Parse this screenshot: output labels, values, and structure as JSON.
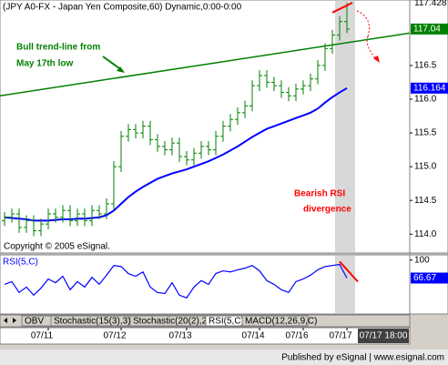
{
  "chart_data": {
    "type": "ohlc",
    "title": "(JPY A0-FX - Japan Yen Composite,60) Dynamic,0:00-0:00",
    "copyright": "Copyright © 2005 eSignal.",
    "categories": [
      null,
      null,
      null,
      null,
      null,
      null,
      "07/11",
      null,
      null,
      null,
      null,
      null,
      null,
      null,
      null,
      null,
      "07/12",
      null,
      null,
      null,
      null,
      null,
      null,
      null,
      null,
      "07/13",
      null,
      null,
      null,
      null,
      null,
      null,
      null,
      null,
      null,
      "07/14",
      null,
      null,
      null,
      null,
      null,
      "07/16",
      null,
      null,
      null,
      null,
      null,
      "07/17"
    ],
    "open": [
      114.2,
      114.25,
      114.3,
      114.1,
      114.2,
      114.05,
      114.15,
      114.3,
      114.25,
      114.35,
      114.2,
      114.3,
      114.2,
      114.35,
      114.3,
      114.45,
      115.0,
      115.45,
      115.55,
      115.5,
      115.6,
      115.4,
      115.3,
      115.25,
      115.35,
      115.15,
      115.1,
      115.2,
      115.3,
      115.25,
      115.45,
      115.6,
      115.7,
      115.8,
      115.9,
      116.2,
      116.35,
      116.25,
      116.2,
      116.1,
      116.05,
      116.15,
      116.2,
      116.3,
      116.5,
      116.75,
      116.95,
      117.15
    ],
    "high": [
      114.33,
      114.38,
      114.38,
      114.28,
      114.28,
      114.23,
      114.38,
      114.38,
      114.43,
      114.43,
      114.38,
      114.38,
      114.43,
      114.43,
      114.53,
      115.08,
      115.53,
      115.63,
      115.63,
      115.68,
      115.68,
      115.48,
      115.38,
      115.43,
      115.43,
      115.23,
      115.28,
      115.38,
      115.38,
      115.53,
      115.68,
      115.78,
      115.88,
      115.98,
      116.28,
      116.43,
      116.43,
      116.33,
      116.28,
      116.18,
      116.23,
      116.28,
      116.38,
      116.58,
      116.83,
      117.03,
      117.23,
      117.428
    ],
    "low": [
      114.12,
      114.17,
      114.02,
      114.02,
      113.97,
      113.97,
      114.07,
      114.17,
      114.17,
      114.12,
      114.12,
      114.12,
      114.12,
      114.22,
      114.22,
      114.37,
      114.92,
      115.37,
      115.42,
      115.42,
      115.32,
      115.22,
      115.17,
      115.17,
      115.07,
      115.02,
      115.02,
      115.12,
      115.17,
      115.17,
      115.37,
      115.52,
      115.62,
      115.72,
      115.82,
      116.12,
      116.17,
      116.12,
      116.02,
      115.97,
      115.97,
      116.07,
      116.12,
      116.22,
      116.42,
      116.67,
      116.87,
      116.98
    ],
    "close": [
      114.25,
      114.3,
      114.1,
      114.2,
      114.05,
      114.15,
      114.3,
      114.25,
      114.35,
      114.2,
      114.3,
      114.2,
      114.35,
      114.3,
      114.45,
      115.0,
      115.45,
      115.55,
      115.5,
      115.6,
      115.4,
      115.3,
      115.25,
      115.35,
      115.15,
      115.1,
      115.2,
      115.3,
      115.25,
      115.45,
      115.6,
      115.7,
      115.8,
      115.9,
      116.2,
      116.35,
      116.25,
      116.2,
      116.1,
      116.05,
      116.15,
      116.2,
      116.3,
      116.5,
      116.75,
      116.95,
      117.15,
      117.04
    ],
    "bar_color": "#008000",
    "ma": [
      114.25,
      114.24,
      114.23,
      114.22,
      114.2,
      114.2,
      114.2,
      114.21,
      114.22,
      114.22,
      114.23,
      114.23,
      114.24,
      114.25,
      114.28,
      114.35,
      114.45,
      114.55,
      114.63,
      114.7,
      114.76,
      114.82,
      114.86,
      114.9,
      114.93,
      114.96,
      115.0,
      115.04,
      115.08,
      115.13,
      115.18,
      115.24,
      115.3,
      115.37,
      115.44,
      115.5,
      115.56,
      115.6,
      115.64,
      115.68,
      115.72,
      115.76,
      115.8,
      115.86,
      115.95,
      116.03,
      116.1,
      116.164
    ],
    "ma_color": "#0000ff",
    "ylim": [
      113.72,
      117.47
    ],
    "yticks": [
      {
        "value": 114,
        "label": "114.0"
      },
      114.5,
      {
        "value": 115,
        "label": "115.0"
      },
      115.5,
      {
        "value": 116,
        "label": "116.0"
      },
      116.5
    ],
    "trendline": {
      "start": 116.05,
      "end": 116.98,
      "color": "#008000",
      "label": [
        "Bull trend-line from",
        "May 17th low"
      ]
    },
    "annotation": {
      "label": [
        "Bearish RSI",
        "divergence"
      ],
      "color": "#ff0000"
    },
    "rsi": {
      "name": "RSI(5,C)",
      "color": "#0000ff",
      "ylim": [
        0,
        108
      ],
      "yticks": [
        100
      ],
      "values": [
        55,
        60,
        40,
        50,
        35,
        48,
        65,
        58,
        70,
        45,
        60,
        50,
        68,
        55,
        72,
        90,
        88,
        75,
        70,
        78,
        50,
        40,
        38,
        58,
        35,
        30,
        50,
        62,
        55,
        75,
        80,
        78,
        82,
        85,
        90,
        80,
        62,
        55,
        45,
        40,
        60,
        65,
        72,
        82,
        88,
        90,
        92,
        66.67
      ]
    },
    "tabs": [
      "OBV",
      "Stochastic(15(3),3)",
      "Stochastic(20(2),2)",
      "RSI(5,C)",
      "MACD(12,26,9,C)"
    ],
    "cursor_label": "07/17 18:00",
    "footer": "Published by eSignal | www.esignal.com"
  }
}
